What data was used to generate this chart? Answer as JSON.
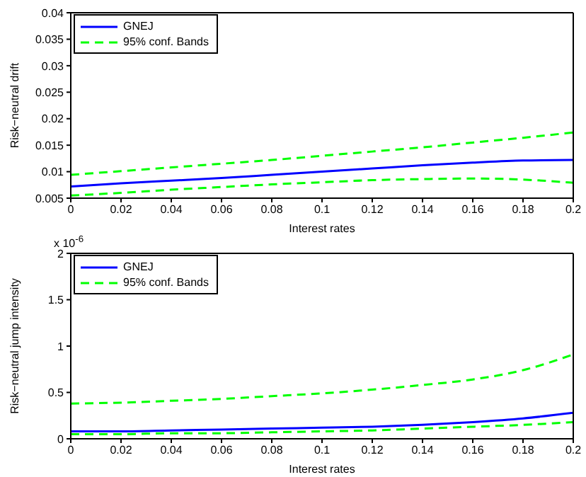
{
  "chart_data": [
    {
      "type": "line",
      "xlabel": "Interest rates",
      "ylabel": "Risk−neutral drift",
      "x": [
        0,
        0.02,
        0.04,
        0.06,
        0.08,
        0.1,
        0.12,
        0.14,
        0.16,
        0.18,
        0.2
      ],
      "xlim": [
        0,
        0.2
      ],
      "xticks": [
        0,
        0.02,
        0.04,
        0.06,
        0.08,
        0.1,
        0.12,
        0.14,
        0.16,
        0.18,
        0.2
      ],
      "ylim": [
        0.005,
        0.04
      ],
      "yticks": [
        0.005,
        0.01,
        0.015,
        0.02,
        0.025,
        0.03,
        0.035,
        0.04
      ],
      "legend": "top left",
      "grid": false,
      "marker": "none",
      "series": [
        {
          "name": "GNEJ",
          "color": "#0000ff",
          "line_style": "solid",
          "values": [
            0.0072,
            0.0078,
            0.0083,
            0.0088,
            0.0094,
            0.01,
            0.0106,
            0.0112,
            0.0117,
            0.0121,
            0.0122
          ]
        },
        {
          "name": "95% conf. Bands",
          "color": "#00ff00",
          "line_style": "dashed",
          "values": [
            0.0094,
            0.0101,
            0.0108,
            0.0115,
            0.0122,
            0.013,
            0.0138,
            0.0146,
            0.0155,
            0.0164,
            0.0174
          ]
        },
        {
          "color": "#00ff00",
          "line_style": "dashed",
          "values": [
            0.0055,
            0.006,
            0.0066,
            0.0071,
            0.0076,
            0.008,
            0.0084,
            0.0086,
            0.0087,
            0.0085,
            0.0079
          ]
        }
      ]
    },
    {
      "type": "line",
      "xlabel": "Interest rates",
      "ylabel": "Risk−neutral jump intensity",
      "annotations": [
        "x 10$^{-6}$"
      ],
      "x": [
        0,
        0.02,
        0.04,
        0.06,
        0.08,
        0.1,
        0.12,
        0.14,
        0.16,
        0.18,
        0.2
      ],
      "xlim": [
        0,
        0.2
      ],
      "xticks": [
        0,
        0.02,
        0.04,
        0.06,
        0.08,
        0.1,
        0.12,
        0.14,
        0.16,
        0.18,
        0.2
      ],
      "ylim": [
        0,
        2
      ],
      "yticks": [
        0,
        0.5,
        1,
        1.5,
        2
      ],
      "legend": "top left",
      "grid": false,
      "marker": "none",
      "series": [
        {
          "name": "GNEJ",
          "color": "#0000ff",
          "line_style": "solid",
          "values": [
            0.08,
            0.08,
            0.09,
            0.1,
            0.11,
            0.12,
            0.13,
            0.15,
            0.18,
            0.22,
            0.28
          ]
        },
        {
          "name": "95% conf. Bands",
          "color": "#00ff00",
          "line_style": "dashed",
          "values": [
            0.38,
            0.39,
            0.41,
            0.43,
            0.46,
            0.49,
            0.53,
            0.58,
            0.64,
            0.74,
            0.91
          ]
        },
        {
          "color": "#00ff00",
          "line_style": "dashed",
          "values": [
            0.05,
            0.05,
            0.06,
            0.06,
            0.07,
            0.08,
            0.09,
            0.11,
            0.13,
            0.15,
            0.18
          ]
        }
      ]
    }
  ]
}
